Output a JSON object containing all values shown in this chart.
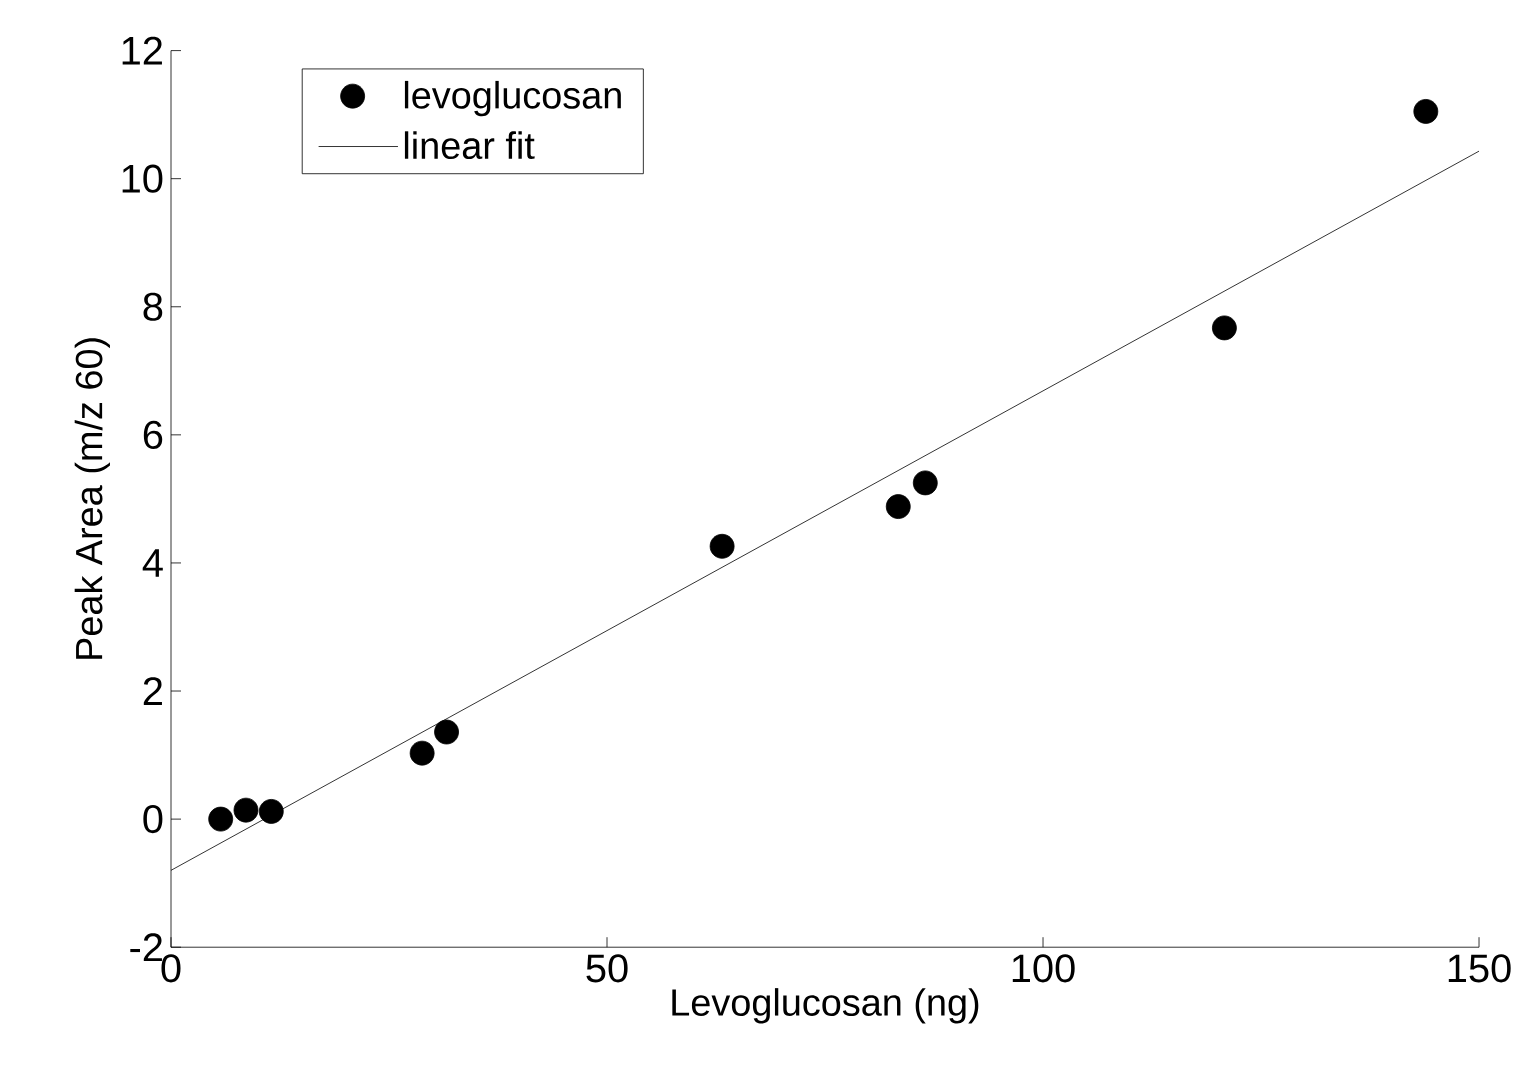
{
  "chart_data": {
    "type": "scatter",
    "xlabel": "Levoglucosan (ng)",
    "ylabel": "Peak Area (m/z 60)",
    "xlim": [
      0,
      150
    ],
    "xticks": [
      0,
      50,
      100,
      150
    ],
    "ylim": [
      -2,
      12
    ],
    "yticks": [
      -2,
      0,
      2,
      4,
      6,
      8,
      10,
      12
    ],
    "legend": "top left",
    "grid": false,
    "series": [
      {
        "name": "levoglucosan",
        "marker": "circle",
        "color": "#000000",
        "x": [
          5.7,
          8.6,
          11.5,
          28.8,
          31.6,
          63.2,
          83.4,
          86.5,
          120.8,
          143.9
        ],
        "values": [
          0.0,
          0.14,
          0.12,
          1.03,
          1.36,
          4.26,
          4.88,
          5.25,
          7.67,
          11.05
        ]
      },
      {
        "name": "linear fit",
        "type": "line",
        "color": "#000000",
        "x": [
          0,
          150
        ],
        "values": [
          -0.8,
          10.43
        ]
      }
    ]
  }
}
